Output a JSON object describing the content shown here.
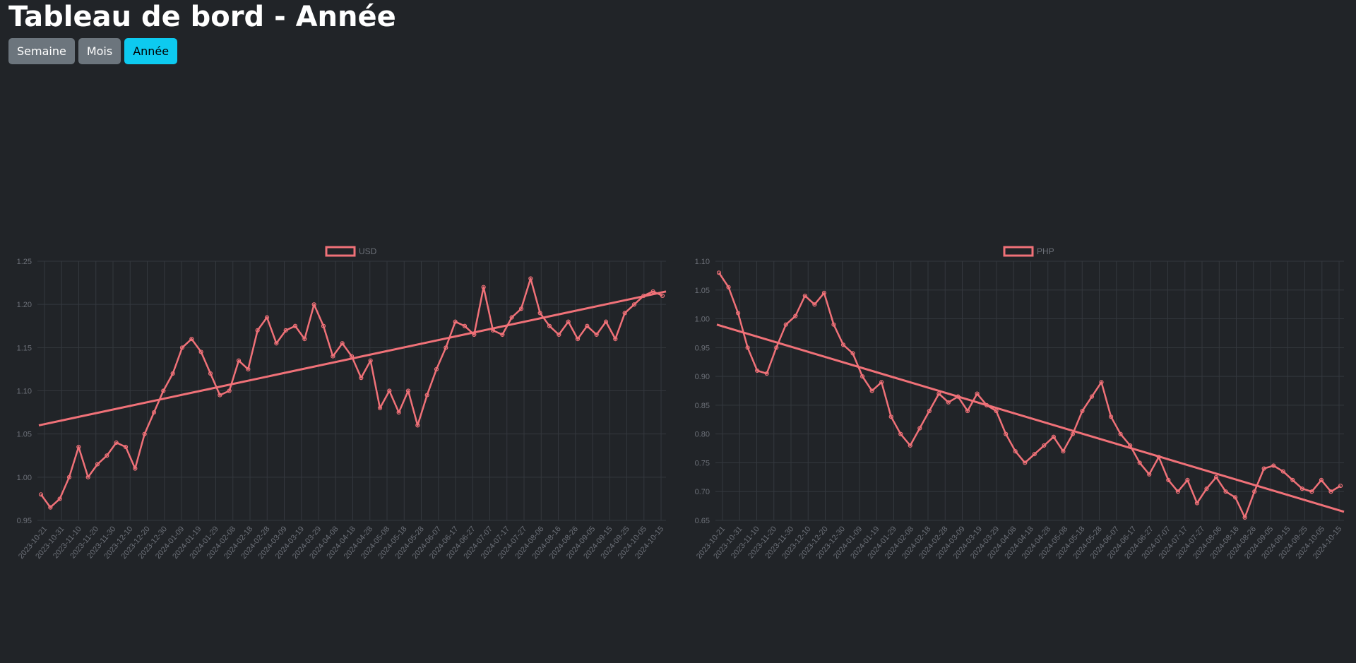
{
  "page": {
    "title": "Tableau de bord - Année"
  },
  "buttons": [
    {
      "label": "Semaine",
      "active": false
    },
    {
      "label": "Mois",
      "active": false
    },
    {
      "label": "Année",
      "active": true
    }
  ],
  "colors": {
    "series": "#f07178",
    "grid": "#34383e",
    "tick": "#6c7078",
    "active": "#0dcaf0",
    "button": "#6c757d",
    "background": "#212428"
  },
  "x_ticks": [
    "2023-10-21",
    "2023-10-31",
    "2023-11-10",
    "2023-11-20",
    "2023-11-30",
    "2023-12-10",
    "2023-12-20",
    "2023-12-30",
    "2024-01-09",
    "2024-01-19",
    "2024-01-29",
    "2024-02-08",
    "2024-02-18",
    "2024-02-28",
    "2024-03-09",
    "2024-03-19",
    "2024-03-29",
    "2024-04-08",
    "2024-04-18",
    "2024-04-28",
    "2024-05-08",
    "2024-05-18",
    "2024-05-28",
    "2024-06-07",
    "2024-06-17",
    "2024-06-27",
    "2024-07-07",
    "2024-07-17",
    "2024-07-27",
    "2024-08-06",
    "2024-08-16",
    "2024-08-26",
    "2024-09-05",
    "2024-09-15",
    "2024-09-25",
    "2024-10-05",
    "2024-10-15"
  ],
  "chart_data": [
    {
      "type": "line",
      "legend": "USD",
      "ylim": [
        0.95,
        1.25
      ],
      "y_ticks": [
        "0.95",
        "1.00",
        "1.05",
        "1.10",
        "1.15",
        "1.20",
        "1.25"
      ],
      "grid": true,
      "legend_position": "top",
      "x_start": "2023-10-21",
      "x_end": "2024-10-21",
      "trend": [
        1.06,
        1.215
      ],
      "values": [
        0.98,
        0.965,
        0.975,
        1.0,
        1.035,
        1.0,
        1.015,
        1.025,
        1.04,
        1.035,
        1.01,
        1.05,
        1.075,
        1.1,
        1.12,
        1.15,
        1.16,
        1.145,
        1.12,
        1.095,
        1.1,
        1.135,
        1.125,
        1.17,
        1.185,
        1.155,
        1.17,
        1.175,
        1.16,
        1.2,
        1.175,
        1.14,
        1.155,
        1.14,
        1.115,
        1.135,
        1.08,
        1.1,
        1.075,
        1.1,
        1.06,
        1.095,
        1.125,
        1.15,
        1.18,
        1.175,
        1.165,
        1.22,
        1.17,
        1.165,
        1.185,
        1.195,
        1.23,
        1.19,
        1.175,
        1.165,
        1.18,
        1.16,
        1.175,
        1.165,
        1.18,
        1.16,
        1.19,
        1.2,
        1.21,
        1.215,
        1.21
      ]
    },
    {
      "type": "line",
      "legend": "PHP",
      "ylim": [
        0.65,
        1.1
      ],
      "y_ticks": [
        "0.65",
        "0.70",
        "0.75",
        "0.80",
        "0.85",
        "0.90",
        "0.95",
        "1.00",
        "1.05",
        "1.10"
      ],
      "grid": true,
      "legend_position": "top",
      "x_start": "2023-10-21",
      "x_end": "2024-10-21",
      "trend": [
        0.99,
        0.665
      ],
      "values": [
        1.08,
        1.055,
        1.01,
        0.95,
        0.91,
        0.905,
        0.95,
        0.99,
        1.005,
        1.04,
        1.025,
        1.045,
        0.99,
        0.955,
        0.94,
        0.9,
        0.875,
        0.89,
        0.83,
        0.8,
        0.78,
        0.81,
        0.84,
        0.87,
        0.855,
        0.865,
        0.84,
        0.87,
        0.85,
        0.84,
        0.8,
        0.77,
        0.75,
        0.765,
        0.78,
        0.795,
        0.77,
        0.8,
        0.84,
        0.865,
        0.89,
        0.83,
        0.8,
        0.78,
        0.75,
        0.73,
        0.76,
        0.72,
        0.7,
        0.72,
        0.68,
        0.705,
        0.725,
        0.7,
        0.69,
        0.655,
        0.7,
        0.74,
        0.745,
        0.735,
        0.72,
        0.705,
        0.7,
        0.72,
        0.7,
        0.71
      ]
    }
  ]
}
